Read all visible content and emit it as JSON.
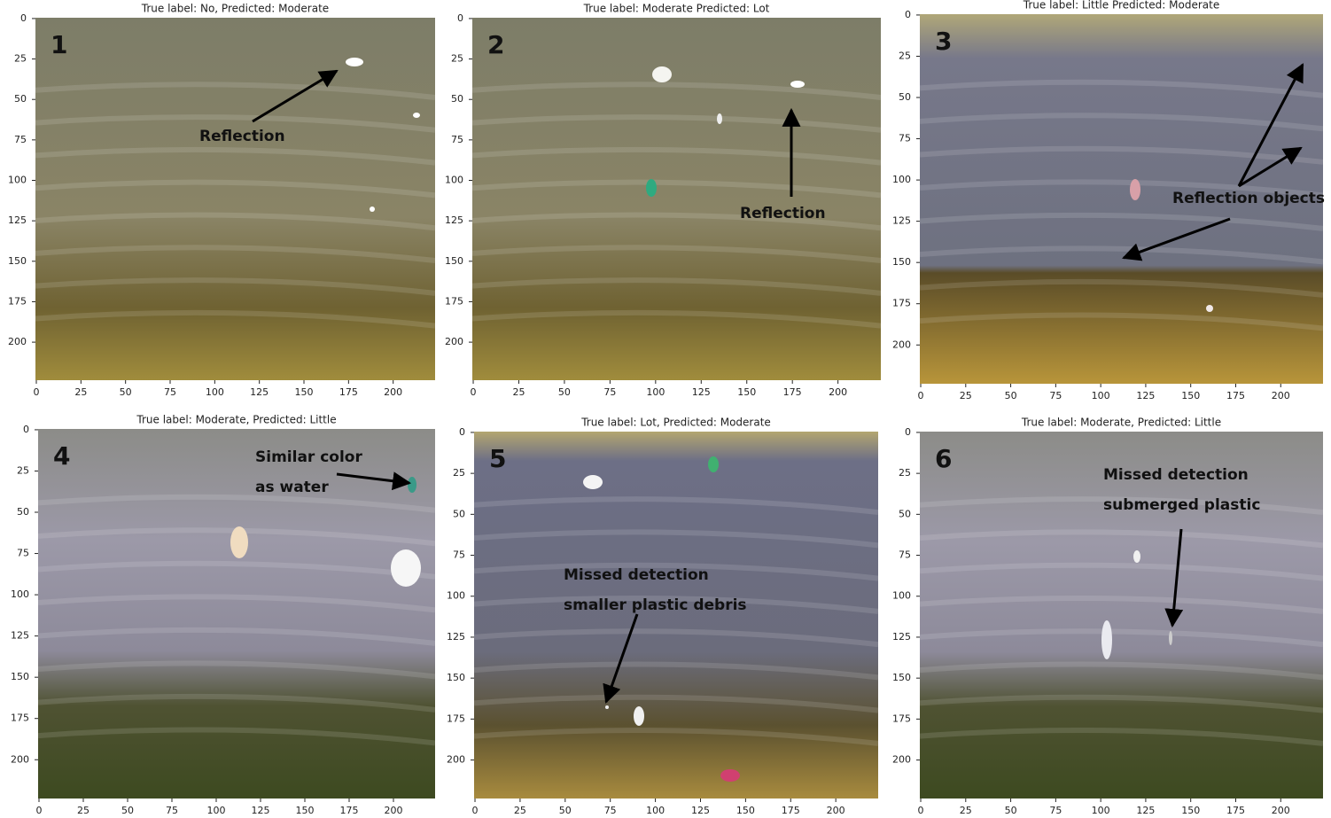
{
  "panels": [
    {
      "number": "1",
      "title": "True label: No, Predicted: Moderate",
      "annotation": [
        "Reflection"
      ]
    },
    {
      "number": "2",
      "title": "True label: Moderate Predicted: Lot",
      "annotation": [
        "Reflection"
      ]
    },
    {
      "number": "3",
      "title": "True label: Little Predicted: Moderate",
      "annotation": [
        "Reflection objects"
      ]
    },
    {
      "number": "4",
      "title": "True label: Moderate, Predicted: Little",
      "annotation": [
        "Similar color",
        "as water"
      ]
    },
    {
      "number": "5",
      "title": "True label: Lot, Predicted: Moderate",
      "annotation": [
        "Missed detection",
        "smaller plastic debris"
      ]
    },
    {
      "number": "6",
      "title": "True label: Moderate, Predicted: Little",
      "annotation": [
        "Missed detection",
        "submerged plastic"
      ]
    }
  ],
  "xlim": [
    -0.5,
    223.5
  ],
  "ylim": [
    -0.5,
    223.5
  ],
  "xticks": [
    0,
    25,
    50,
    75,
    100,
    125,
    150,
    175,
    200
  ],
  "yticks": [
    0,
    25,
    50,
    75,
    100,
    125,
    150,
    175,
    200
  ]
}
